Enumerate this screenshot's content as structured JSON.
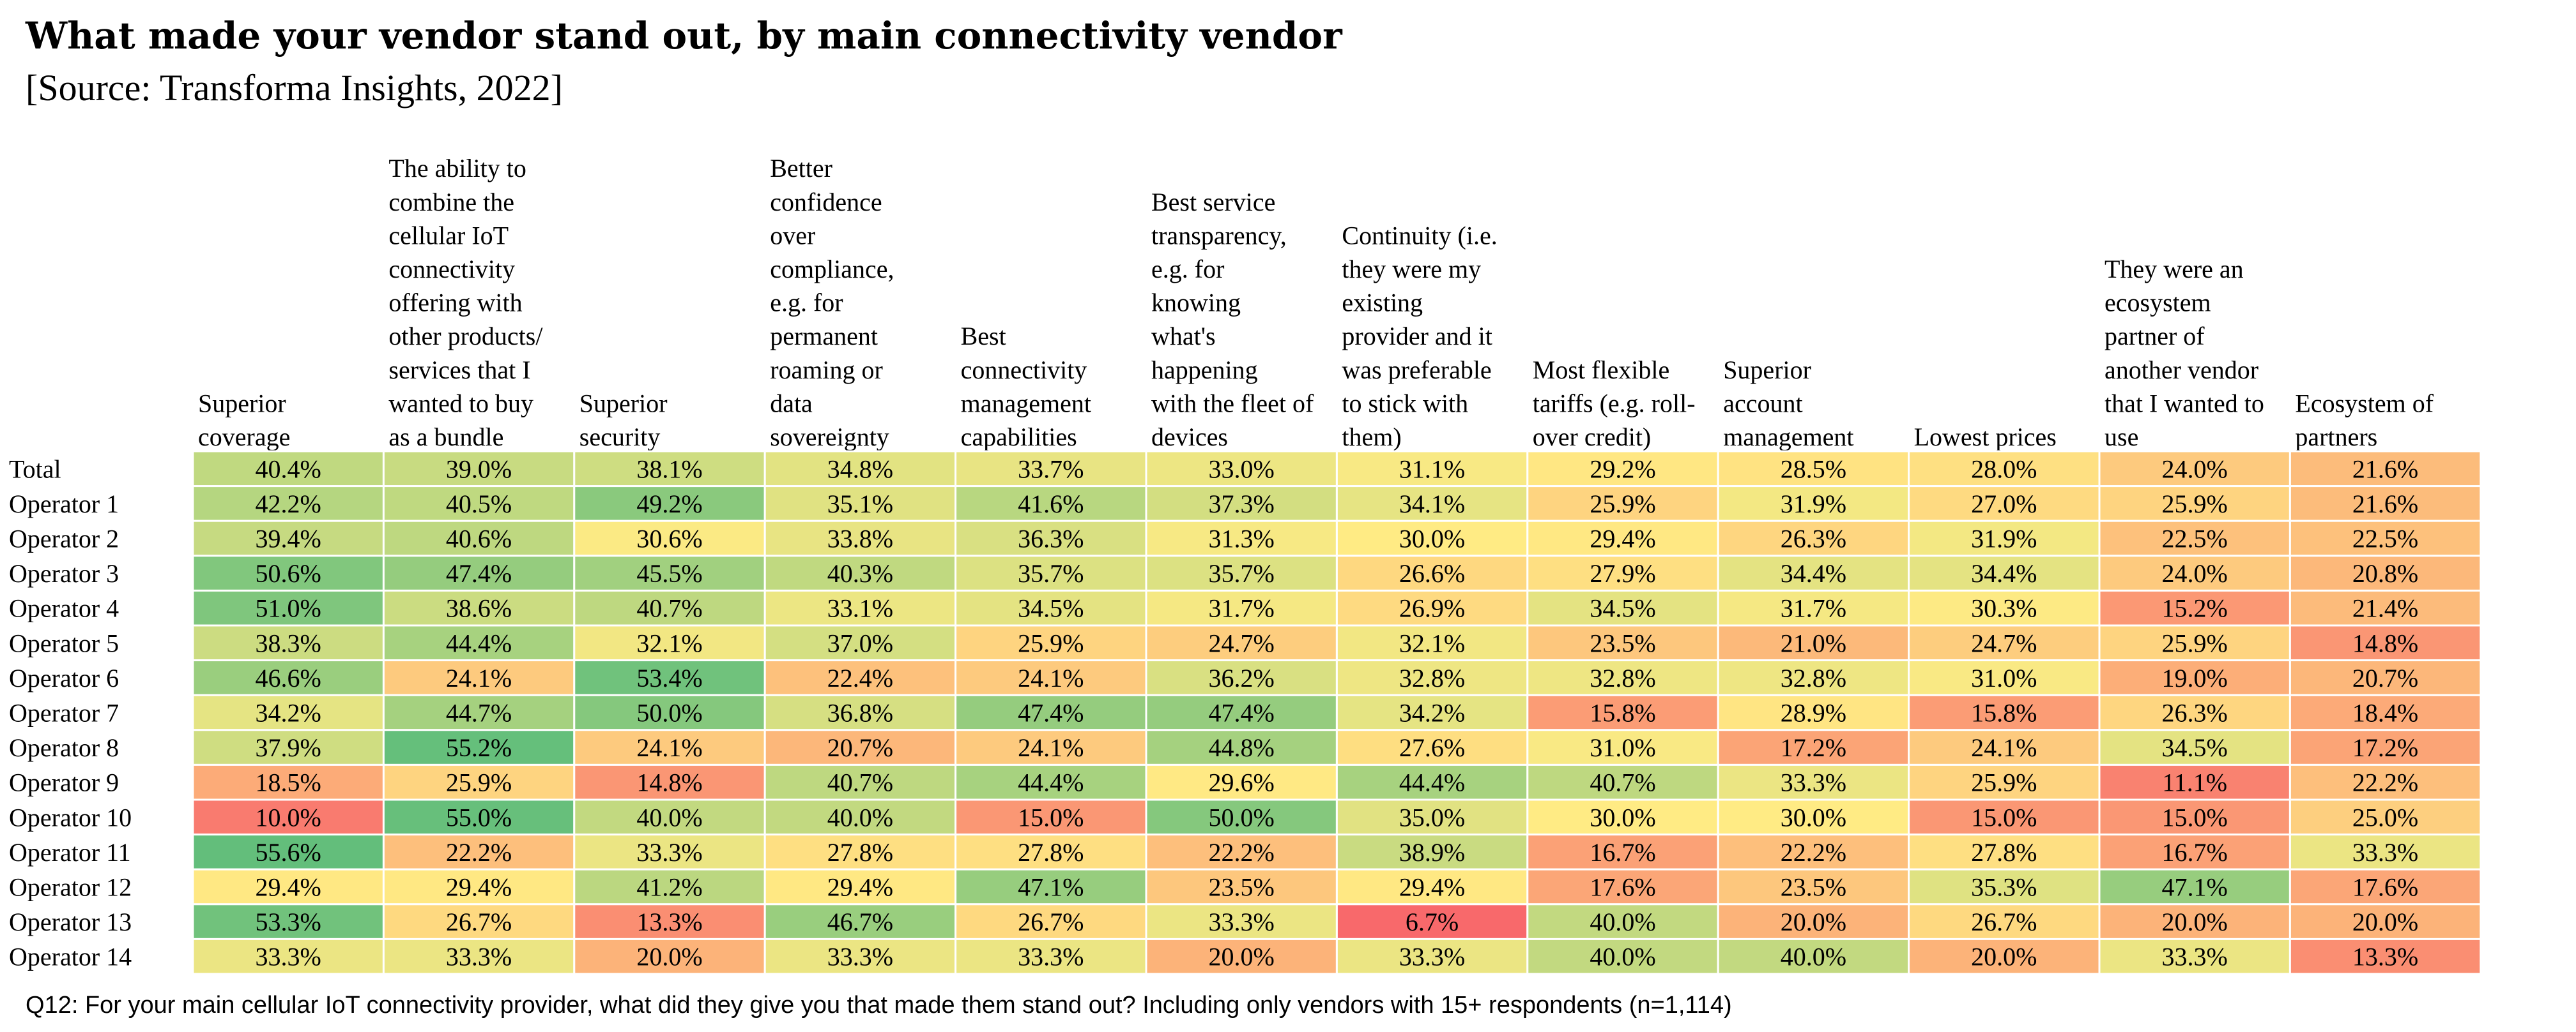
{
  "chart_data": {
    "type": "heatmap",
    "title": "What made your vendor stand out, by main connectivity vendor",
    "subtitle": "[Source: Transforma Insights, 2022]",
    "footnote": "Q12: For your main cellular IoT connectivity provider, what did they give you that made them stand out? Including only vendors with 15+ respondents (n=1,114)",
    "columns": [
      [
        "Superior",
        "coverage"
      ],
      [
        "The ability to",
        "combine the",
        "cellular IoT",
        "connectivity",
        "offering with",
        "other products/",
        "services that I",
        "wanted to buy",
        "as a bundle"
      ],
      [
        "Superior",
        "security"
      ],
      [
        "Better",
        "confidence",
        "over",
        "compliance,",
        "e.g. for",
        "permanent",
        "roaming or",
        "data",
        "sovereignty"
      ],
      [
        "Best",
        "connectivity",
        "management",
        "capabilities"
      ],
      [
        "Best service",
        "transparency,",
        "e.g. for",
        "knowing",
        "what's",
        "happening",
        "with the fleet of",
        "devices"
      ],
      [
        "Continuity (i.e.",
        "they were my",
        "existing",
        "provider and it",
        "was preferable",
        "to stick with",
        "them)"
      ],
      [
        "Most flexible",
        "tariffs (e.g. roll-",
        "over credit)"
      ],
      [
        "Superior",
        "account",
        "management"
      ],
      [
        "Lowest prices"
      ],
      [
        "They were an",
        "ecosystem",
        "partner of",
        "another vendor",
        "that I wanted to",
        "use"
      ],
      [
        "Ecosystem of",
        "partners"
      ]
    ],
    "rows": [
      "Total",
      "Operator 1",
      "Operator 2",
      "Operator 3",
      "Operator 4",
      "Operator 5",
      "Operator 6",
      "Operator 7",
      "Operator 8",
      "Operator 9",
      "Operator 10",
      "Operator 11",
      "Operator 12",
      "Operator 13",
      "Operator 14"
    ],
    "values": [
      [
        40.4,
        39.0,
        38.1,
        34.8,
        33.7,
        33.0,
        31.1,
        29.2,
        28.5,
        28.0,
        24.0,
        21.6
      ],
      [
        42.2,
        40.5,
        49.2,
        35.1,
        41.6,
        37.3,
        34.1,
        25.9,
        31.9,
        27.0,
        25.9,
        21.6
      ],
      [
        39.4,
        40.6,
        30.6,
        33.8,
        36.3,
        31.3,
        30.0,
        29.4,
        26.3,
        31.9,
        22.5,
        22.5
      ],
      [
        50.6,
        47.4,
        45.5,
        40.3,
        35.7,
        35.7,
        26.6,
        27.9,
        34.4,
        34.4,
        24.0,
        20.8
      ],
      [
        51.0,
        38.6,
        40.7,
        33.1,
        34.5,
        31.7,
        26.9,
        34.5,
        31.7,
        30.3,
        15.2,
        21.4
      ],
      [
        38.3,
        44.4,
        32.1,
        37.0,
        25.9,
        24.7,
        32.1,
        23.5,
        21.0,
        24.7,
        25.9,
        14.8
      ],
      [
        46.6,
        24.1,
        53.4,
        22.4,
        24.1,
        36.2,
        32.8,
        32.8,
        32.8,
        31.0,
        19.0,
        20.7
      ],
      [
        34.2,
        44.7,
        50.0,
        36.8,
        47.4,
        47.4,
        34.2,
        15.8,
        28.9,
        15.8,
        26.3,
        18.4
      ],
      [
        37.9,
        55.2,
        24.1,
        20.7,
        24.1,
        44.8,
        27.6,
        31.0,
        17.2,
        24.1,
        34.5,
        17.2
      ],
      [
        18.5,
        25.9,
        14.8,
        40.7,
        44.4,
        29.6,
        44.4,
        40.7,
        33.3,
        25.9,
        11.1,
        22.2
      ],
      [
        10.0,
        55.0,
        40.0,
        40.0,
        15.0,
        50.0,
        35.0,
        30.0,
        30.0,
        15.0,
        15.0,
        25.0
      ],
      [
        55.6,
        22.2,
        33.3,
        27.8,
        27.8,
        22.2,
        38.9,
        16.7,
        22.2,
        27.8,
        16.7,
        33.3
      ],
      [
        29.4,
        29.4,
        41.2,
        29.4,
        47.1,
        23.5,
        29.4,
        17.6,
        23.5,
        35.3,
        47.1,
        17.6
      ],
      [
        53.3,
        26.7,
        13.3,
        46.7,
        26.7,
        33.3,
        6.7,
        40.0,
        20.0,
        26.7,
        20.0,
        20.0
      ],
      [
        33.3,
        33.3,
        20.0,
        33.3,
        33.3,
        20.0,
        33.3,
        40.0,
        40.0,
        20.0,
        33.3,
        13.3
      ]
    ],
    "value_suffix": "%",
    "color_scale": {
      "low": "#f8696b",
      "mid": "#ffeb84",
      "high": "#63be7b"
    }
  }
}
